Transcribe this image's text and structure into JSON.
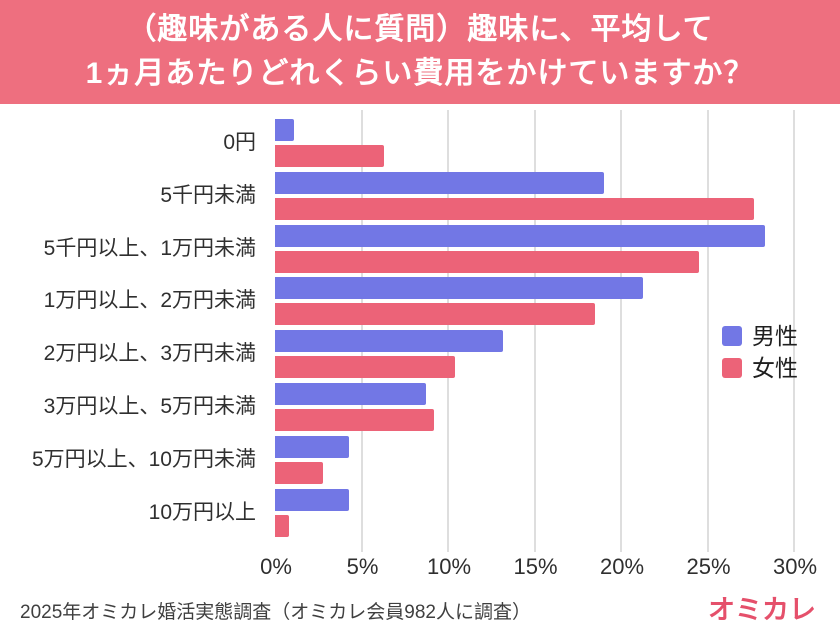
{
  "header": {
    "title_line1": "（趣味がある人に質問）趣味に、平均して",
    "title_line2": "1ヵ月あたりどれくらい費用をかけていますか？"
  },
  "chart_data": {
    "type": "bar",
    "orientation": "horizontal",
    "title": "（趣味がある人に質問）趣味に、平均して1ヵ月あたりどれくらい費用をかけていますか？",
    "categories": [
      "0円",
      "5千円未満",
      "5千円以上、1万円未満",
      "1万円以上、2万円未満",
      "2万円以上、3万円未満",
      "3万円以上、5万円未満",
      "5万円以上、10万円未満",
      "10万円以上"
    ],
    "series": [
      {
        "name": "男性",
        "color": "#7277E5",
        "values": [
          1.1,
          19.0,
          28.3,
          21.3,
          13.2,
          8.7,
          4.3,
          4.3
        ]
      },
      {
        "name": "女性",
        "color": "#EC6378",
        "values": [
          6.3,
          27.7,
          24.5,
          18.5,
          10.4,
          9.2,
          2.8,
          0.8
        ]
      }
    ],
    "x_axis": {
      "ticks": [
        "0%",
        "5%",
        "10%",
        "15%",
        "20%",
        "25%",
        "30%"
      ],
      "min": 0,
      "max": 30,
      "tick_step": 5,
      "unit": "%"
    },
    "grid": true,
    "legend_position": "right"
  },
  "footer": {
    "source": "2025年オミカレ婚活実態調査（オミカレ会員982人に調査）",
    "logo": "オミカレ"
  },
  "colors": {
    "banner_bg": "#EE6F7F",
    "male_bar": "#7277E5",
    "female_bar": "#EC6378",
    "gridline": "#DEDEDE",
    "text": "#2F2F2F",
    "footer_text": "#3F3F3F",
    "logo": "#E5506B",
    "background": "#FFFFFF"
  }
}
